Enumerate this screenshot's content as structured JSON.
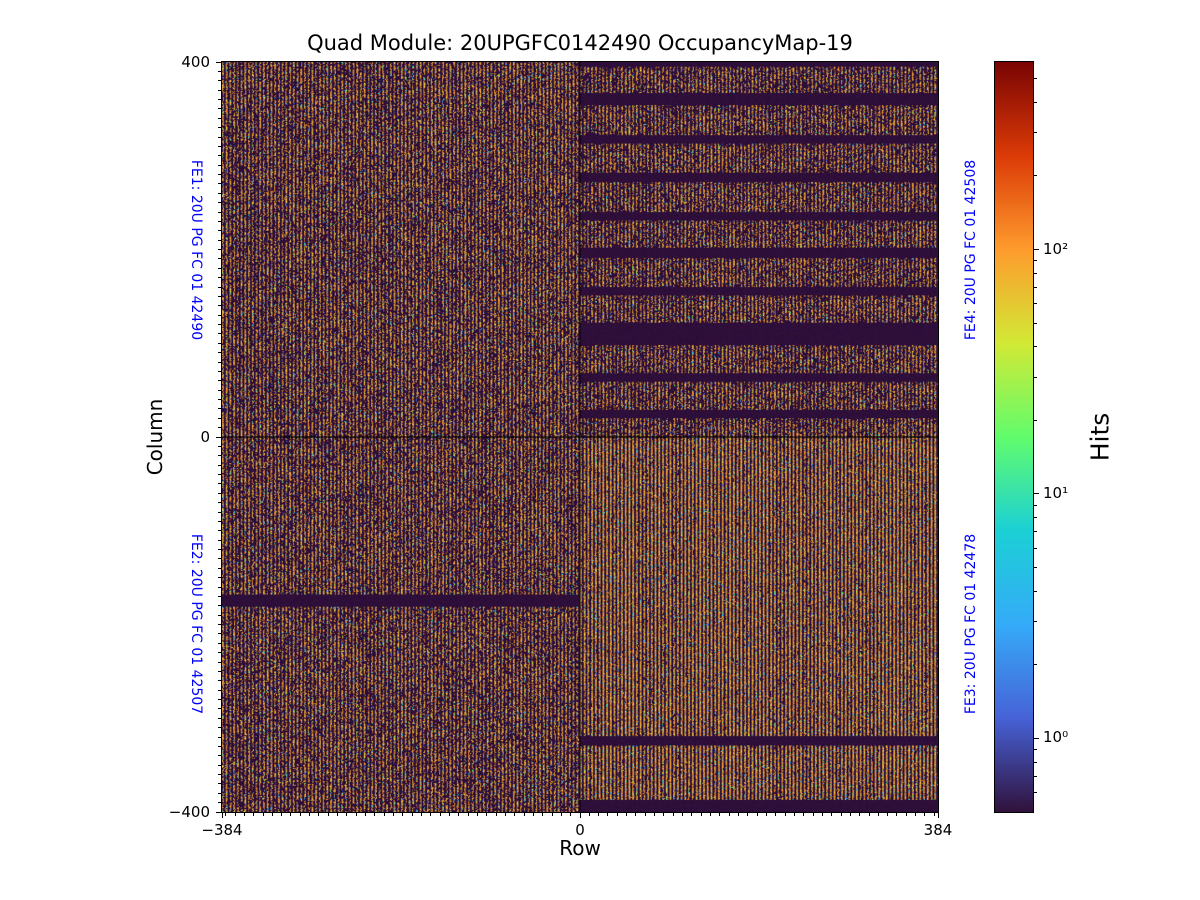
{
  "chart_data": {
    "type": "heatmap",
    "title": "Quad Module: 20UPGFC0142490 OccupancyMap-19",
    "xlabel": "Row",
    "ylabel": "Column",
    "xlim": [
      -384,
      384
    ],
    "ylim": [
      -400,
      400
    ],
    "x_tick_values": [
      -384,
      0,
      384
    ],
    "x_tick_labels": [
      "−384",
      "0",
      "384"
    ],
    "y_tick_values": [
      400,
      0,
      -400
    ],
    "y_tick_labels": [
      "400",
      "0",
      "−400"
    ],
    "minor_tick_step": 10,
    "grid": false,
    "legend": "none",
    "colorbar": {
      "label": "Hits",
      "position": "right",
      "scale": "log",
      "vmin": 0.5,
      "vmax": 585,
      "tick_values": [
        1,
        10,
        100
      ],
      "tick_labels": [
        "10⁰",
        "10¹",
        "10²"
      ],
      "colormap": "turbo",
      "colormap_stops": [
        [
          0.0,
          "#30123b"
        ],
        [
          0.125,
          "#4662d7"
        ],
        [
          0.25,
          "#35abf8"
        ],
        [
          0.375,
          "#1bd0d5"
        ],
        [
          0.5,
          "#61fc6c"
        ],
        [
          0.625,
          "#d2e935"
        ],
        [
          0.75,
          "#fe9b2d"
        ],
        [
          0.875,
          "#db3a07"
        ],
        [
          1.0,
          "#7a0403"
        ]
      ]
    },
    "chip_label_color": "#0000ff",
    "chips": [
      {
        "id": "FE1",
        "label": "FE1: 20U PG FC 01 42490",
        "quadrant": "top-left",
        "label_side": "left",
        "row_range": [
          -384,
          0
        ],
        "column_range": [
          0,
          400
        ],
        "masked_column_bands": []
      },
      {
        "id": "FE2",
        "label": "FE2: 20U PG FC 01 42507",
        "quadrant": "bottom-left",
        "label_side": "left",
        "row_range": [
          -384,
          0
        ],
        "column_range": [
          -400,
          0
        ],
        "masked_column_bands": [
          [
            -168,
            -181
          ]
        ]
      },
      {
        "id": "FE3",
        "label": "FE3: 20U PG FC 01 42478",
        "quadrant": "bottom-right",
        "label_side": "right",
        "row_range": [
          0,
          384
        ],
        "column_range": [
          -400,
          0
        ],
        "masked_column_bands": [
          [
            -319,
            -329
          ],
          [
            -387,
            -400
          ]
        ]
      },
      {
        "id": "FE4",
        "label": "FE4: 20U PG FC 01 42508",
        "quadrant": "top-right",
        "label_side": "right",
        "row_range": [
          0,
          384
        ],
        "column_range": [
          0,
          400
        ],
        "masked_column_bands": [
          [
            400,
            395
          ],
          [
            367,
            354
          ],
          [
            322,
            313
          ],
          [
            282,
            272
          ],
          [
            240,
            231
          ],
          [
            202,
            191
          ],
          [
            160,
            151
          ],
          [
            122,
            98
          ],
          [
            68,
            59
          ],
          [
            29,
            20
          ]
        ]
      }
    ],
    "occupancy_texture": {
      "seed": 1337,
      "stripe_period_rows": 4,
      "stripe_on_rows": 2,
      "fill_density": {
        "FE1": 0.62,
        "FE2": 0.62,
        "FE3": 0.85,
        "FE4": 0.6
      },
      "off_stripe_dot_probability": 0.035,
      "background_color": "#2e0f3a",
      "divider_lines": {
        "row": 0,
        "column": 0
      },
      "hit_palette": [
        {
          "color": "#e0912f",
          "weight": 0.38
        },
        {
          "color": "#c07a2b",
          "weight": 0.2
        },
        {
          "color": "#96622a",
          "weight": 0.1
        },
        {
          "color": "#ecc83d",
          "weight": 0.12
        },
        {
          "color": "#7d5526",
          "weight": 0.06
        },
        {
          "color": "#3f63d2",
          "weight": 0.05
        },
        {
          "color": "#2bc6cf",
          "weight": 0.04
        },
        {
          "color": "#3fa3f0",
          "weight": 0.02
        },
        {
          "color": "#52e460",
          "weight": 0.02
        },
        {
          "color": "#a8dd3f",
          "weight": 0.01
        }
      ]
    }
  }
}
